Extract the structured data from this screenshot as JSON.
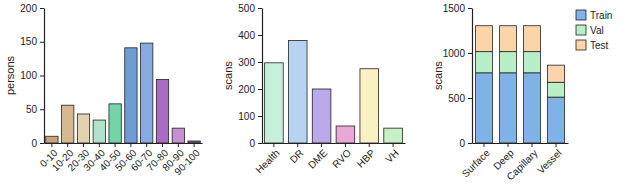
{
  "chart_data": [
    {
      "type": "bar",
      "y_label": "persons",
      "categories": [
        "0-10",
        "10-20",
        "20-30",
        "30-40",
        "40-50",
        "50-60",
        "60-70",
        "70-80",
        "80-90",
        "90-100"
      ],
      "values": [
        10,
        56,
        43,
        34,
        58,
        141,
        148,
        94,
        22,
        3
      ],
      "colors": [
        "#c9a57f",
        "#d8b891",
        "#e3d2ad",
        "#b3e2cb",
        "#74d4a5",
        "#6e9dd4",
        "#86aadf",
        "#a96cc2",
        "#c490d2",
        "#6e5c7c"
      ],
      "ylim": [
        0,
        200
      ],
      "yticks": [
        0,
        50,
        100,
        150,
        200
      ]
    },
    {
      "type": "bar",
      "y_label": "scans",
      "categories": [
        "Health",
        "DR",
        "DME",
        "RVO",
        "HBP",
        "VH"
      ],
      "values": [
        297,
        380,
        200,
        63,
        275,
        55
      ],
      "colors": [
        "#c6f0dc",
        "#b8d3f0",
        "#b9a9e8",
        "#e8a9d9",
        "#faf1c2",
        "#c8f0c6"
      ],
      "ylim": [
        0,
        500
      ],
      "yticks": [
        0,
        100,
        200,
        300,
        400,
        500
      ]
    },
    {
      "type": "bar",
      "stacked": true,
      "legend": "right",
      "y_label": "scans",
      "categories": [
        "Surface",
        "Deep",
        "Capillary",
        "Vessel"
      ],
      "series": [
        {
          "name": "Train",
          "color": "#7fb2e6",
          "values": [
            780,
            780,
            780,
            510
          ]
        },
        {
          "name": "Val",
          "color": "#b8efc6",
          "values": [
            235,
            235,
            235,
            165
          ]
        },
        {
          "name": "Test",
          "color": "#fbd4aa",
          "values": [
            288,
            288,
            288,
            190
          ]
        }
      ],
      "ylim": [
        0,
        1500
      ],
      "yticks": [
        0,
        500,
        1000,
        1500
      ]
    }
  ]
}
